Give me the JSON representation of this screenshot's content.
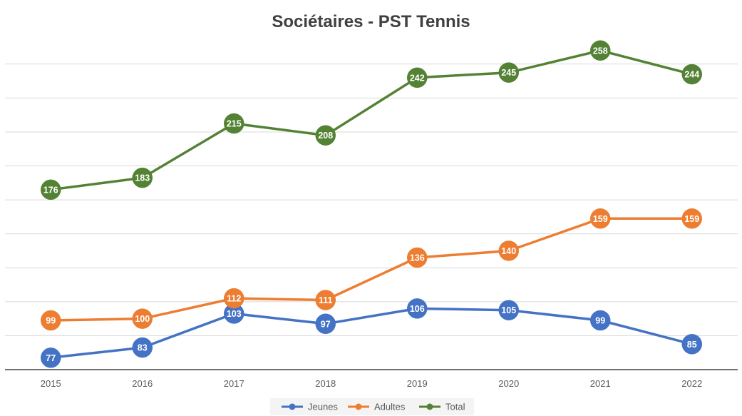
{
  "chart_data": {
    "type": "line",
    "title": "Sociétaires - PST Tennis",
    "categories": [
      "2015",
      "2016",
      "2017",
      "2018",
      "2019",
      "2020",
      "2021",
      "2022"
    ],
    "series": [
      {
        "name": "Jeunes",
        "color": "#4472C4",
        "values": [
          77,
          83,
          103,
          97,
          106,
          105,
          99,
          85
        ]
      },
      {
        "name": "Adultes",
        "color": "#ED7D31",
        "values": [
          99,
          100,
          112,
          111,
          136,
          140,
          159,
          159
        ]
      },
      {
        "name": "Total",
        "color": "#548235",
        "values": [
          176,
          183,
          215,
          208,
          242,
          245,
          258,
          244
        ]
      }
    ],
    "ylim": [
      70,
      260
    ],
    "y_major_unit": 20,
    "grid": true,
    "legend": "bottom",
    "data_labels": true
  }
}
